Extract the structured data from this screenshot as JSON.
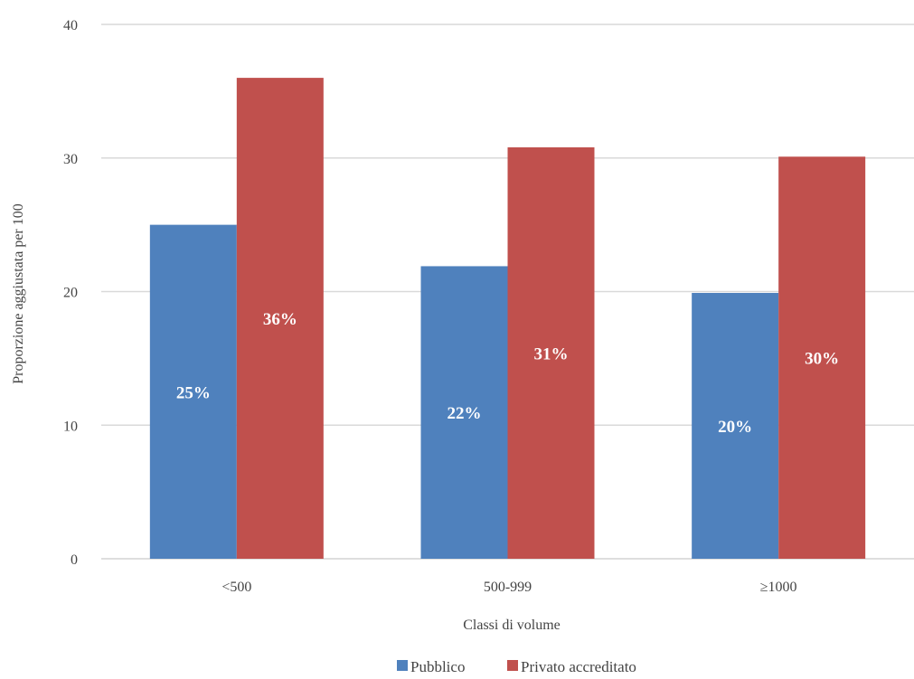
{
  "chart_data": {
    "type": "bar",
    "title": "",
    "xlabel": "Classi di volume",
    "ylabel": "Proporzione aggiustata per 100",
    "categories": [
      "<500",
      "500-999",
      "≥1000"
    ],
    "ylim": [
      0,
      40
    ],
    "yticks": [
      0,
      10,
      20,
      30,
      40
    ],
    "grid": true,
    "legend_position": "bottom",
    "series": [
      {
        "name": "Pubblico",
        "color": "#4f81bd",
        "values": [
          25,
          21.9,
          19.9
        ],
        "labels": [
          "25%",
          "22%",
          "20%"
        ]
      },
      {
        "name": "Privato accreditato",
        "color": "#c0504d",
        "values": [
          36,
          30.8,
          30.1
        ],
        "labels": [
          "36%",
          "31%",
          "30%"
        ]
      }
    ]
  }
}
